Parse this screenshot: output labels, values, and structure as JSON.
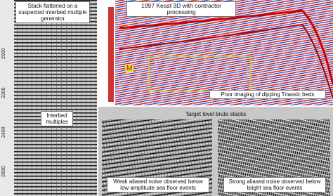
{
  "left_panel": {
    "title": "Stack flattened on a suspected interbed multiple generator",
    "annotation": "Interbed multiples",
    "axis_labels": [
      "2000",
      "2200",
      "2400",
      "2600"
    ]
  },
  "top_panel": {
    "title": "1997 Keast 3D with contractor processing",
    "marker": "M",
    "annotation": "Poor imaging of dipping Triassic beds"
  },
  "bottom_panel": {
    "title": "Target level brute stacks",
    "left_caption": "Weak aliased noise observed below low amplitude sea floor events",
    "right_caption": "Strong aliased noise observed below bright sea floor events"
  }
}
